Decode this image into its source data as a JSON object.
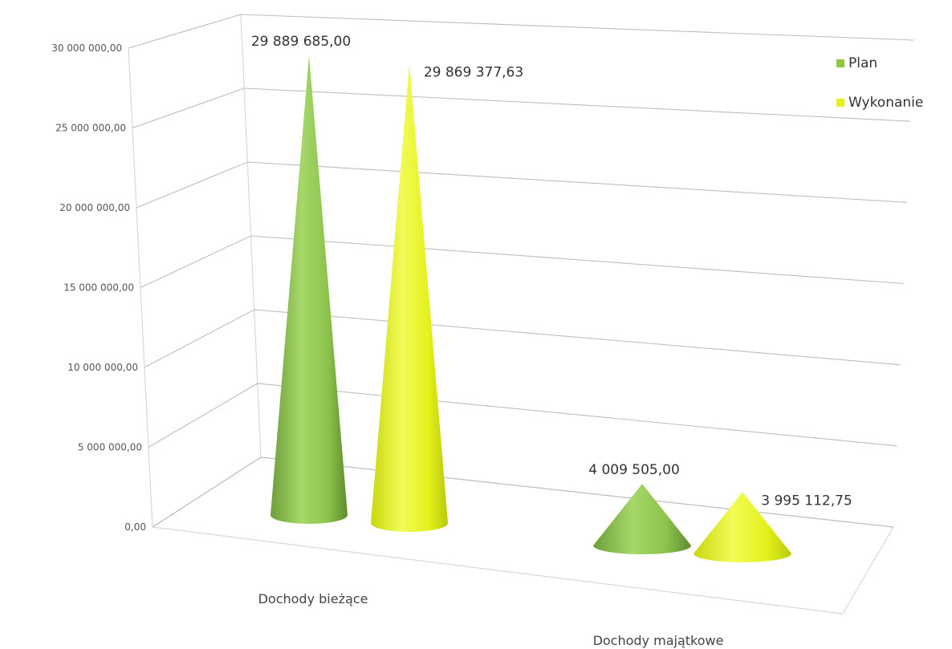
{
  "chart_data": {
    "type": "bar",
    "style": "3d-cone",
    "categories": [
      "Dochody bieżące",
      "Dochody majątkowe"
    ],
    "series": [
      {
        "name": "Plan",
        "values": [
          29889685.0,
          4009505.0
        ],
        "labels": [
          "29 889 685,00",
          "4 009 505,00"
        ]
      },
      {
        "name": "Wykonanie",
        "values": [
          29869377.63,
          3995112.75
        ],
        "labels": [
          "29 869 377,63",
          "3 995 112,75"
        ]
      }
    ],
    "y_ticks": [
      {
        "value": 0,
        "label": "0,00"
      },
      {
        "value": 5000000,
        "label": "5 000 000,00"
      },
      {
        "value": 10000000,
        "label": "10 000 000,00"
      },
      {
        "value": 15000000,
        "label": "15 000 000,00"
      },
      {
        "value": 20000000,
        "label": "20 000 000,00"
      },
      {
        "value": 25000000,
        "label": "25 000 000,00"
      },
      {
        "value": 30000000,
        "label": "30 000 000,00"
      }
    ],
    "ylim": [
      0,
      30000000
    ],
    "grid": true,
    "legend_position": "top-right",
    "colors": {
      "Plan": "#8dc63f",
      "Wykonanie": "#e6f21a"
    }
  }
}
